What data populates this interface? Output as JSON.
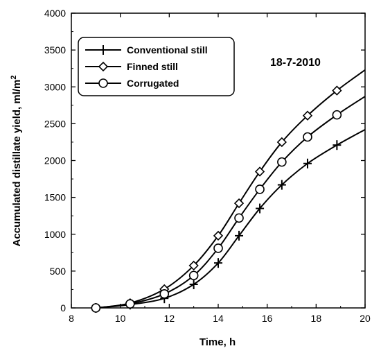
{
  "chart_data": {
    "type": "line",
    "annotation": "18-7-2010",
    "xlabel": "Time, h",
    "ylabel": "Accumulated distillate yield, ml/m²",
    "xlim": [
      8,
      20
    ],
    "ylim": [
      0,
      4000
    ],
    "xticks": [
      8,
      10,
      12,
      14,
      16,
      18,
      20
    ],
    "yticks": [
      0,
      500,
      1000,
      1500,
      2000,
      2500,
      3000,
      3500,
      4000
    ],
    "grid": false,
    "legend_position": "top-left",
    "series": [
      {
        "name": "Conventional still",
        "marker": "plus",
        "points": [
          [
            9.0,
            0
          ],
          [
            10.4,
            45
          ],
          [
            11.8,
            130
          ],
          [
            13.0,
            320
          ],
          [
            14.0,
            610
          ],
          [
            14.85,
            980
          ],
          [
            15.7,
            1350
          ],
          [
            16.6,
            1670
          ],
          [
            17.65,
            1960
          ],
          [
            18.85,
            2210
          ]
        ],
        "curve": [
          [
            9.0,
            0
          ],
          [
            10.4,
            45
          ],
          [
            11.8,
            130
          ],
          [
            13.0,
            320
          ],
          [
            14.0,
            610
          ],
          [
            14.85,
            980
          ],
          [
            15.7,
            1350
          ],
          [
            16.6,
            1670
          ],
          [
            17.65,
            1960
          ],
          [
            18.85,
            2210
          ],
          [
            20.0,
            2420
          ]
        ]
      },
      {
        "name": "Finned still",
        "marker": "diamond",
        "points": [
          [
            9.0,
            0
          ],
          [
            10.4,
            65
          ],
          [
            11.8,
            255
          ],
          [
            13.0,
            575
          ],
          [
            14.0,
            980
          ],
          [
            14.85,
            1420
          ],
          [
            15.7,
            1850
          ],
          [
            16.6,
            2250
          ],
          [
            17.65,
            2610
          ],
          [
            18.85,
            2950
          ]
        ],
        "curve": [
          [
            9.0,
            0
          ],
          [
            10.4,
            65
          ],
          [
            11.8,
            255
          ],
          [
            13.0,
            575
          ],
          [
            14.0,
            980
          ],
          [
            14.85,
            1420
          ],
          [
            15.7,
            1850
          ],
          [
            16.6,
            2250
          ],
          [
            17.65,
            2610
          ],
          [
            18.85,
            2950
          ],
          [
            20.0,
            3230
          ]
        ]
      },
      {
        "name": "Corrugated",
        "marker": "circle",
        "points": [
          [
            9.0,
            0
          ],
          [
            10.4,
            55
          ],
          [
            11.8,
            190
          ],
          [
            13.0,
            440
          ],
          [
            14.0,
            810
          ],
          [
            14.85,
            1220
          ],
          [
            15.7,
            1610
          ],
          [
            16.6,
            1980
          ],
          [
            17.65,
            2320
          ],
          [
            18.85,
            2620
          ]
        ],
        "curve": [
          [
            9.0,
            0
          ],
          [
            10.4,
            55
          ],
          [
            11.8,
            190
          ],
          [
            13.0,
            440
          ],
          [
            14.0,
            810
          ],
          [
            14.85,
            1220
          ],
          [
            15.7,
            1610
          ],
          [
            16.6,
            1980
          ],
          [
            17.65,
            2320
          ],
          [
            18.85,
            2620
          ],
          [
            20.0,
            2870
          ]
        ]
      }
    ]
  }
}
